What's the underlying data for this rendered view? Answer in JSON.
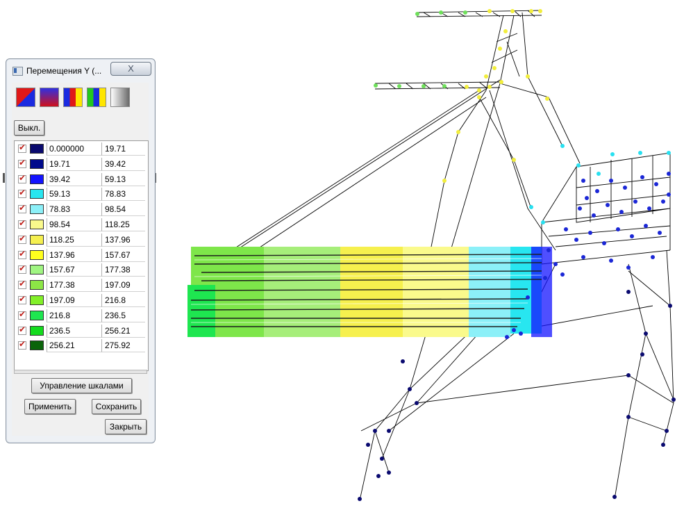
{
  "window": {
    "title": "Перемещения Y (...",
    "close_symbol": "X",
    "off_button": "Выкл.",
    "scale_manage_button": "Управление шкалами",
    "apply_button": "Применить",
    "save_button": "Сохранить",
    "close_button": "Закрыть"
  },
  "palettes": [
    {
      "icon": "palette-red-blue-diagonal-icon"
    },
    {
      "icon": "palette-blue-red-gradient-icon"
    },
    {
      "icon": "palette-blue-red-yellow-stripes-icon"
    },
    {
      "icon": "palette-green-blue-yellow-stripes-icon"
    },
    {
      "icon": "palette-grayscale-icon"
    }
  ],
  "scale_rows": [
    {
      "from": "0.000000",
      "to": "19.71",
      "color": "#0a0a6e"
    },
    {
      "from": "19.71",
      "to": "39.42",
      "color": "#000a8c"
    },
    {
      "from": "39.42",
      "to": "59.13",
      "color": "#1414ff"
    },
    {
      "from": "59.13",
      "to": "78.83",
      "color": "#28e6f0"
    },
    {
      "from": "78.83",
      "to": "98.54",
      "color": "#8cf0f8"
    },
    {
      "from": "98.54",
      "to": "118.25",
      "color": "#fafa8c"
    },
    {
      "from": "118.25",
      "to": "137.96",
      "color": "#f5f050"
    },
    {
      "from": "137.96",
      "to": "157.67",
      "color": "#ffff1e"
    },
    {
      "from": "157.67",
      "to": "177.38",
      "color": "#a0f582"
    },
    {
      "from": "177.38",
      "to": "197.09",
      "color": "#8ce646"
    },
    {
      "from": "197.09",
      "to": "216.8",
      "color": "#82f028"
    },
    {
      "from": "216.8",
      "to": "236.5",
      "color": "#1ee650"
    },
    {
      "from": "236.5",
      "to": "256.21",
      "color": "#14dc1e"
    },
    {
      "from": "256.21",
      "to": "275.92",
      "color": "#0a640a"
    }
  ]
}
